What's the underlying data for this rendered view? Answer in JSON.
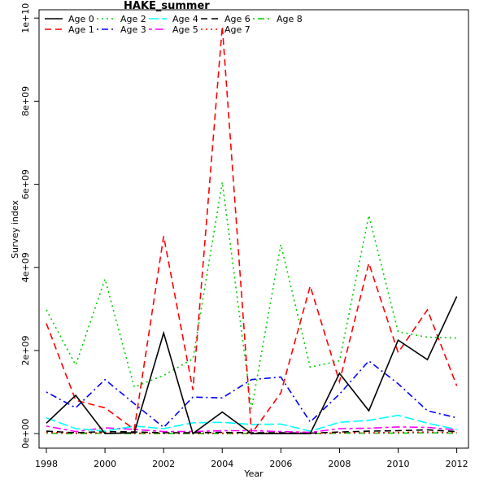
{
  "chart_data": {
    "type": "line",
    "title": "HAKE_summer",
    "xlabel": "Year",
    "ylabel": "Survey index",
    "x": [
      1998,
      1999,
      2000,
      2001,
      2002,
      2003,
      2004,
      2005,
      2006,
      2007,
      2008,
      2009,
      2010,
      2011,
      2012
    ],
    "xlim": [
      1997.75,
      2012.4
    ],
    "ylim": [
      -350000000.0,
      10200000000.0
    ],
    "xticks": [
      1998,
      2000,
      2002,
      2004,
      2006,
      2008,
      2010,
      2012
    ],
    "yticks": [
      0,
      2000000000.0,
      4000000000.0,
      6000000000.0,
      8000000000.0,
      10000000000.0
    ],
    "ytick_labels": [
      "0e+00",
      "2e+09",
      "4e+09",
      "6e+09",
      "8e+09",
      "1e+10"
    ],
    "grid": false,
    "legend_placement": "top-left",
    "series": [
      {
        "name": "Age 0",
        "color": "#000000",
        "dash": "solid",
        "values": [
          250000000.0,
          920000000.0,
          0.0,
          20000000.0,
          2420000000.0,
          0.0,
          520000000.0,
          0.0,
          0.0,
          0.0,
          1450000000.0,
          550000000.0,
          2250000000.0,
          1780000000.0,
          3300000000.0
        ]
      },
      {
        "name": "Age 1",
        "color": "#ff0000",
        "dash": "dashed",
        "values": [
          2650000000.0,
          800000000.0,
          620000000.0,
          100000000.0,
          4750000000.0,
          1050000000.0,
          9800000000.0,
          0.0,
          980000000.0,
          3550000000.0,
          1250000000.0,
          4100000000.0,
          1950000000.0,
          2980000000.0,
          1150000000.0
        ]
      },
      {
        "name": "Age 2",
        "color": "#00cd00",
        "dash": "dotted",
        "values": [
          2980000000.0,
          1650000000.0,
          3720000000.0,
          1120000000.0,
          1400000000.0,
          1800000000.0,
          6050000000.0,
          600000000.0,
          4550000000.0,
          1600000000.0,
          1750000000.0,
          5250000000.0,
          2450000000.0,
          2320000000.0,
          2300000000.0
        ]
      },
      {
        "name": "Age 3",
        "color": "#0000ff",
        "dash": "dotdash",
        "values": [
          1000000000.0,
          620000000.0,
          1300000000.0,
          720000000.0,
          150000000.0,
          880000000.0,
          860000000.0,
          1300000000.0,
          1360000000.0,
          280000000.0,
          950000000.0,
          1750000000.0,
          1200000000.0,
          550000000.0,
          380000000.0
        ]
      },
      {
        "name": "Age 4",
        "color": "#00ffff",
        "dash": "longdash",
        "values": [
          380000000.0,
          120000000.0,
          60000000.0,
          180000000.0,
          120000000.0,
          260000000.0,
          270000000.0,
          220000000.0,
          230000000.0,
          60000000.0,
          270000000.0,
          320000000.0,
          440000000.0,
          250000000.0,
          100000000.0
        ]
      },
      {
        "name": "Age 5",
        "color": "#ff00ff",
        "dash": "twodash",
        "values": [
          180000000.0,
          50000000.0,
          140000000.0,
          100000000.0,
          50000000.0,
          50000000.0,
          70000000.0,
          70000000.0,
          50000000.0,
          30000000.0,
          120000000.0,
          130000000.0,
          160000000.0,
          150000000.0,
          90000000.0
        ]
      },
      {
        "name": "Age 6",
        "color": "#000000",
        "dash": "dashed",
        "values": [
          60000000.0,
          20000000.0,
          50000000.0,
          40000000.0,
          20000000.0,
          20000000.0,
          30000000.0,
          20000000.0,
          20000000.0,
          10000000.0,
          40000000.0,
          60000000.0,
          70000000.0,
          90000000.0,
          50000000.0
        ]
      },
      {
        "name": "Age 7",
        "color": "#ff0000",
        "dash": "dotted",
        "values": [
          30000000.0,
          10000000.0,
          20000000.0,
          10000000.0,
          10000000.0,
          10000000.0,
          10000000.0,
          10000000.0,
          10000000.0,
          0.0,
          20000000.0,
          20000000.0,
          30000000.0,
          40000000.0,
          20000000.0
        ]
      },
      {
        "name": "Age 8",
        "color": "#00cd00",
        "dash": "dotdash",
        "values": [
          10000000.0,
          0.0,
          10000000.0,
          0.0,
          0.0,
          0.0,
          0.0,
          0.0,
          0.0,
          0.0,
          10000000.0,
          10000000.0,
          10000000.0,
          20000000.0,
          10000000.0
        ]
      }
    ]
  }
}
